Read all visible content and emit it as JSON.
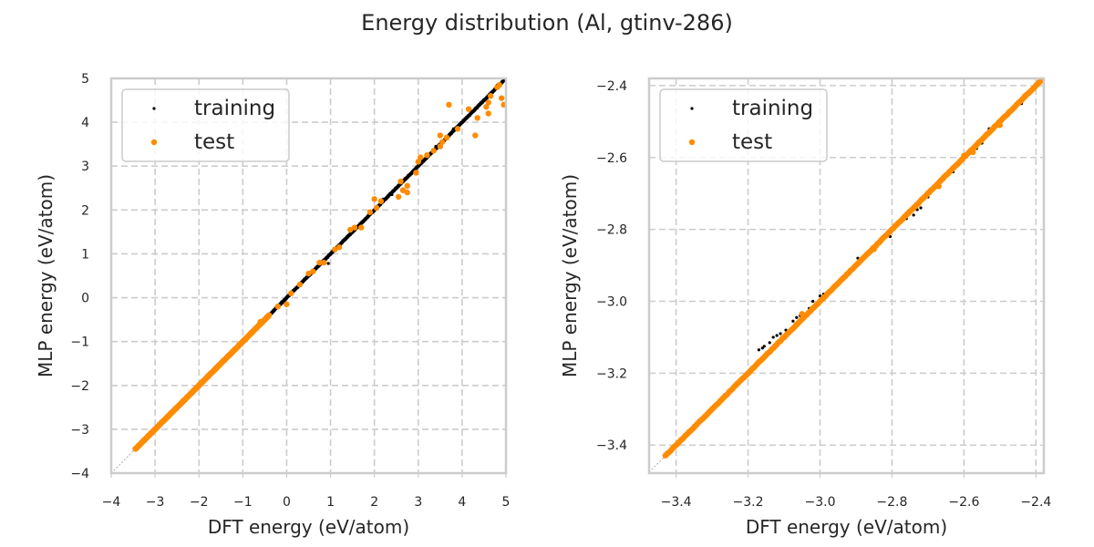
{
  "chart_data": {
    "title": "Energy distribution (Al, gtinv-286)",
    "legend": {
      "entries": [
        "training",
        "test"
      ],
      "placement": "top-left"
    },
    "colors": {
      "training": "#000000",
      "test": "#ff8c00",
      "grid": "#cccccc",
      "spine": "#cccccc",
      "diagonal": "#999999"
    },
    "panels": [
      {
        "type": "scatter",
        "xlabel": "DFT energy (eV/atom)",
        "ylabel": "MLP energy (eV/atom)",
        "xlim": [
          -4,
          5
        ],
        "ylim": [
          -4,
          5
        ],
        "xticks": [
          -4,
          -3,
          -2,
          -1,
          0,
          1,
          2,
          3,
          4,
          5
        ],
        "yticks": [
          -4,
          -3,
          -2,
          -1,
          0,
          1,
          2,
          3,
          4,
          5
        ],
        "xtick_labels": [
          "−4",
          "−3",
          "−2",
          "−1",
          "0",
          "1",
          "2",
          "3",
          "4",
          "5"
        ],
        "ytick_labels": [
          "−4",
          "−3",
          "−2",
          "−1",
          "0",
          "1",
          "2",
          "3",
          "4",
          "5"
        ],
        "grid": true,
        "diagonal": true,
        "series": [
          {
            "name": "training",
            "dense_range": [
              -3.45,
              4.95
            ],
            "points": [
              [
                -0.1,
                -0.12
              ],
              [
                0.9,
                0.88
              ],
              [
                1.6,
                1.62
              ],
              [
                2.2,
                2.25
              ],
              [
                2.7,
                2.72
              ],
              [
                3.4,
                3.45
              ],
              [
                3.8,
                3.85
              ],
              [
                4.3,
                4.32
              ],
              [
                4.8,
                4.85
              ],
              [
                0.95,
                0.78
              ],
              [
                2.4,
                2.35
              ]
            ]
          },
          {
            "name": "test",
            "dense_range": [
              -3.45,
              -0.4
            ],
            "points": [
              [
                0.0,
                -0.15
              ],
              [
                0.5,
                0.55
              ],
              [
                0.6,
                0.6
              ],
              [
                0.75,
                0.8
              ],
              [
                0.85,
                0.8
              ],
              [
                1.1,
                1.1
              ],
              [
                1.2,
                1.15
              ],
              [
                1.45,
                1.55
              ],
              [
                1.55,
                1.6
              ],
              [
                1.7,
                1.6
              ],
              [
                1.9,
                1.95
              ],
              [
                2.0,
                2.25
              ],
              [
                2.15,
                2.2
              ],
              [
                2.05,
                2.05
              ],
              [
                2.6,
                2.65
              ],
              [
                2.65,
                2.45
              ],
              [
                2.75,
                2.55
              ],
              [
                2.75,
                2.4
              ],
              [
                2.55,
                2.3
              ],
              [
                3.0,
                3.1
              ],
              [
                3.05,
                3.2
              ],
              [
                3.2,
                3.25
              ],
              [
                2.95,
                2.85
              ],
              [
                3.35,
                3.35
              ],
              [
                3.55,
                3.55
              ],
              [
                3.65,
                3.65
              ],
              [
                3.5,
                3.45
              ],
              [
                3.7,
                4.4
              ],
              [
                3.5,
                3.7
              ],
              [
                3.9,
                3.85
              ],
              [
                4.15,
                4.3
              ],
              [
                4.3,
                3.7
              ],
              [
                4.35,
                4.1
              ],
              [
                4.55,
                4.35
              ],
              [
                4.6,
                4.2
              ],
              [
                4.6,
                4.45
              ],
              [
                4.65,
                4.6
              ],
              [
                4.9,
                4.55
              ],
              [
                4.95,
                4.4
              ],
              [
                4.8,
                4.8
              ],
              [
                4.85,
                4.85
              ],
              [
                -0.95,
                -0.95
              ],
              [
                -0.6,
                -0.55
              ],
              [
                -0.5,
                -0.5
              ],
              [
                -0.2,
                -0.2
              ],
              [
                0.1,
                0.1
              ],
              [
                0.3,
                0.3
              ]
            ]
          }
        ]
      },
      {
        "type": "scatter",
        "xlabel": "DFT energy (eV/atom)",
        "ylabel": "MLP energy (eV/atom)",
        "xlim": [
          -3.475,
          -2.378
        ],
        "ylim": [
          -3.478,
          -2.38
        ],
        "xticks": [
          -3.4,
          -3.2,
          -3.0,
          -2.8,
          -2.6,
          -2.4
        ],
        "yticks": [
          -3.4,
          -3.2,
          -3.0,
          -2.8,
          -2.6,
          -2.4
        ],
        "xtick_labels": [
          "−3.4",
          "−3.2",
          "−3.0",
          "−2.8",
          "−2.6",
          "−2.4"
        ],
        "ytick_labels": [
          "−3.4",
          "−3.2",
          "−3.0",
          "−2.8",
          "−2.6",
          "−2.4"
        ],
        "grid": true,
        "diagonal": true,
        "series": [
          {
            "name": "training",
            "dense_range": [
              -3.43,
              -2.385
            ],
            "points": [
              [
                -3.17,
                -3.135
              ],
              [
                -3.16,
                -3.13
              ],
              [
                -3.155,
                -3.125
              ],
              [
                -3.14,
                -3.115
              ],
              [
                -3.13,
                -3.1
              ],
              [
                -3.12,
                -3.095
              ],
              [
                -3.11,
                -3.09
              ],
              [
                -3.095,
                -3.08
              ],
              [
                -3.075,
                -3.055
              ],
              [
                -3.065,
                -3.045
              ],
              [
                -3.055,
                -3.04
              ],
              [
                -3.03,
                -3.02
              ],
              [
                -3.02,
                -3.0
              ],
              [
                -3.0,
                -2.985
              ],
              [
                -2.99,
                -2.98
              ],
              [
                -2.965,
                -2.965
              ],
              [
                -2.94,
                -2.935
              ],
              [
                -2.92,
                -2.915
              ],
              [
                -2.905,
                -2.9
              ],
              [
                -2.895,
                -2.88
              ],
              [
                -2.88,
                -2.88
              ],
              [
                -2.86,
                -2.86
              ],
              [
                -2.83,
                -2.835
              ],
              [
                -2.81,
                -2.805
              ],
              [
                -2.795,
                -2.79
              ],
              [
                -2.805,
                -2.82
              ],
              [
                -2.76,
                -2.77
              ],
              [
                -2.74,
                -2.76
              ],
              [
                -2.73,
                -2.745
              ],
              [
                -2.72,
                -2.74
              ],
              [
                -2.7,
                -2.71
              ],
              [
                -2.67,
                -2.67
              ],
              [
                -2.655,
                -2.66
              ],
              [
                -2.63,
                -2.64
              ],
              [
                -2.6,
                -2.6
              ],
              [
                -2.58,
                -2.585
              ],
              [
                -2.565,
                -2.575
              ],
              [
                -2.55,
                -2.56
              ],
              [
                -2.54,
                -2.535
              ],
              [
                -2.53,
                -2.52
              ],
              [
                -2.52,
                -2.52
              ],
              [
                -2.5,
                -2.51
              ],
              [
                -2.48,
                -2.48
              ],
              [
                -2.44,
                -2.45
              ],
              [
                -2.42,
                -2.425
              ]
            ]
          },
          {
            "name": "test",
            "dense_range": [
              -3.43,
              -2.385
            ],
            "points": [
              [
                -3.05,
                -3.035
              ],
              [
                -2.85,
                -2.855
              ],
              [
                -2.67,
                -2.68
              ],
              [
                -2.575,
                -2.585
              ],
              [
                -2.6,
                -2.595
              ],
              [
                -2.5,
                -2.51
              ],
              [
                -2.43,
                -2.43
              ]
            ]
          }
        ]
      }
    ]
  }
}
